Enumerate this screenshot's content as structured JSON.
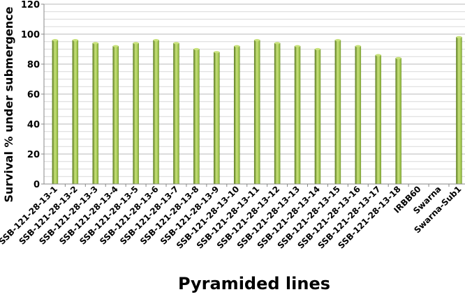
{
  "chart_data": {
    "type": "bar",
    "xlabel": "Pyramided lines",
    "ylabel": "Survival % under submergence",
    "ylim": [
      0,
      120
    ],
    "yticks": [
      0,
      20,
      40,
      60,
      80,
      100,
      120
    ],
    "grid": true,
    "bar_color": "#8db63c",
    "bar_highlight": "#c8e27a",
    "bar_shadow": "#5f7f22",
    "categories": [
      "SSB-121-28-13-1",
      "SSB-121-28-13-2",
      "SSB-121-28-13-3",
      "SSB-121-28-13-4",
      "SSB-121-28-13-5",
      "SSB-121-28-13-6",
      "SSB-121-28-13-7",
      "SSB-121-28-13-8",
      "SSB-121-28-13-9",
      "SSB-121-28-13-10",
      "SSB-121-28-13-11",
      "SSB-121-28-13-12",
      "SSB-121-28-13-13",
      "SSB-121-28-13-14",
      "SSB-121-28-13-15",
      "SSB-121-28-13-16",
      "SSB-121-28-13-17",
      "SSB-121-28-13-18",
      "IRBB60",
      "Swarna",
      "Swarna-Sub1"
    ],
    "values": [
      96,
      96,
      94,
      92,
      94,
      96,
      94,
      90,
      88,
      92,
      96,
      94,
      92,
      90,
      96,
      92,
      86,
      84,
      0,
      0,
      98
    ]
  }
}
